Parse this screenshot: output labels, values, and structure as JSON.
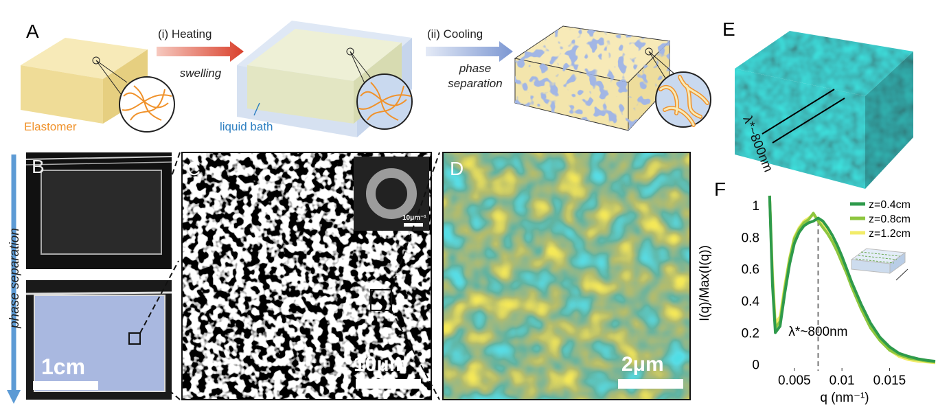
{
  "panels": {
    "A": {
      "label": "A",
      "step1": "(i) Heating",
      "step1_note": "swelling",
      "step2": "(ii) Cooling",
      "step2_note": [
        "phase",
        "separation"
      ],
      "material": "Elastomer",
      "bath": "liquid bath"
    },
    "B": {
      "label": "B",
      "side_text": "phase separation",
      "scale": "1cm"
    },
    "C": {
      "label": "C",
      "scale": "10μm",
      "inset_scale": "10μm⁻¹"
    },
    "D": {
      "label": "D",
      "scale": "2μm"
    },
    "E": {
      "label": "E",
      "wavelength": "λ*~800nm"
    }
  },
  "chart_data": {
    "type": "line",
    "panel_label": "F",
    "x_label": "q (nm⁻¹)",
    "y_label": "I(q)/Max(I(q))",
    "annotation": "λ*~800nm",
    "reference_line_x": 0.0075,
    "xlim": [
      0.0022,
      0.0198
    ],
    "ylim": [
      -0.04,
      1.06
    ],
    "xticks": [
      0.005,
      0.01,
      0.015
    ],
    "yticks": [
      0,
      0.2,
      0.4,
      0.6,
      0.8,
      1
    ],
    "legend": "upper right",
    "x": [
      0.0024,
      0.0027,
      0.003,
      0.0035,
      0.004,
      0.0045,
      0.005,
      0.0055,
      0.006,
      0.0065,
      0.007,
      0.0075,
      0.008,
      0.0085,
      0.009,
      0.0095,
      0.01,
      0.0105,
      0.011,
      0.012,
      0.013,
      0.014,
      0.015,
      0.016,
      0.017,
      0.018,
      0.019,
      0.0198
    ],
    "series": [
      {
        "name": "z=0.4cm",
        "color": "#2e9a4b",
        "values": [
          1.06,
          0.5,
          0.2,
          0.24,
          0.45,
          0.63,
          0.76,
          0.83,
          0.87,
          0.89,
          0.9,
          0.92,
          0.9,
          0.86,
          0.81,
          0.75,
          0.68,
          0.6,
          0.52,
          0.38,
          0.26,
          0.17,
          0.11,
          0.07,
          0.05,
          0.035,
          0.025,
          0.02
        ]
      },
      {
        "name": "z=0.8cm",
        "color": "#8ec63f",
        "values": [
          1.06,
          0.55,
          0.23,
          0.27,
          0.48,
          0.66,
          0.79,
          0.85,
          0.89,
          0.91,
          0.95,
          0.9,
          0.86,
          0.82,
          0.77,
          0.71,
          0.64,
          0.57,
          0.49,
          0.35,
          0.23,
          0.15,
          0.09,
          0.06,
          0.04,
          0.03,
          0.02,
          0.015
        ]
      },
      {
        "name": "z=1.2cm",
        "color": "#f2ec6a",
        "values": [
          1.06,
          0.58,
          0.26,
          0.3,
          0.5,
          0.67,
          0.8,
          0.86,
          0.9,
          0.92,
          0.94,
          0.91,
          0.88,
          0.83,
          0.78,
          0.72,
          0.65,
          0.58,
          0.5,
          0.36,
          0.24,
          0.15,
          0.09,
          0.05,
          0.03,
          0.02,
          0.015,
          0.01
        ]
      }
    ]
  }
}
